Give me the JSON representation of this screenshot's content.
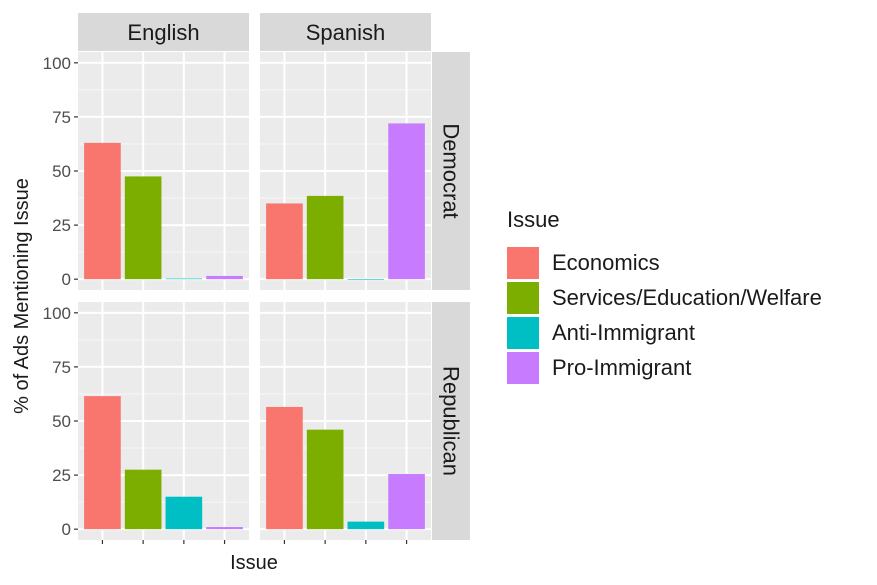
{
  "chart_data": {
    "type": "bar",
    "xlabel": "Issue",
    "ylabel": "% of Ads Mentioning Issue",
    "ylim": [
      0,
      100
    ],
    "yticks": [
      0,
      25,
      50,
      75,
      100
    ],
    "grid": true,
    "legend_placement": "right",
    "legend": {
      "title": "Issue",
      "entries": [
        {
          "name": "Economics",
          "color": "#F8766D"
        },
        {
          "name": "Services/Education/Welfare",
          "color": "#7CAE00"
        },
        {
          "name": "Anti-Immigrant",
          "color": "#00BFC4"
        },
        {
          "name": "Pro-Immigrant",
          "color": "#C77CFF"
        }
      ]
    },
    "columns": [
      "English",
      "Spanish"
    ],
    "rows": [
      "Democrat",
      "Republican"
    ],
    "categories": [
      "Economics",
      "Services/Education/Welfare",
      "Anti-Immigrant",
      "Pro-Immigrant"
    ],
    "panels": [
      {
        "language": "English",
        "party": "Democrat",
        "values": [
          63,
          47.5,
          0.3,
          1.5
        ]
      },
      {
        "language": "Spanish",
        "party": "Democrat",
        "values": [
          35,
          38.5,
          0,
          72
        ]
      },
      {
        "language": "English",
        "party": "Republican",
        "values": [
          61.5,
          27.5,
          15,
          1
        ]
      },
      {
        "language": "Spanish",
        "party": "Republican",
        "values": [
          56.5,
          46,
          3.5,
          25.5
        ]
      }
    ]
  }
}
